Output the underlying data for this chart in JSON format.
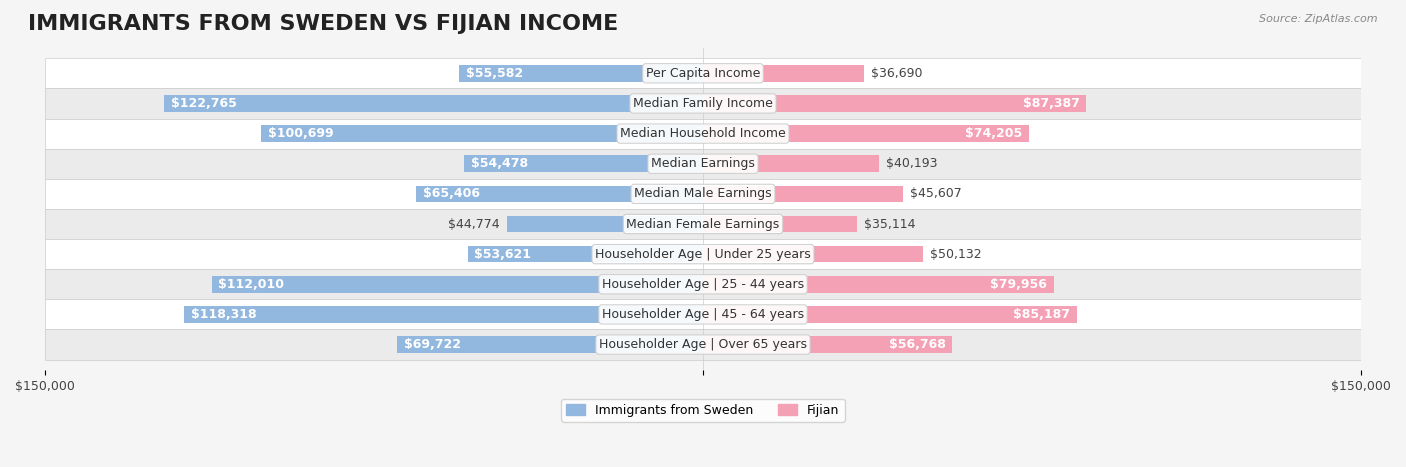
{
  "title": "IMMIGRANTS FROM SWEDEN VS FIJIAN INCOME",
  "source": "Source: ZipAtlas.com",
  "categories": [
    "Per Capita Income",
    "Median Family Income",
    "Median Household Income",
    "Median Earnings",
    "Median Male Earnings",
    "Median Female Earnings",
    "Householder Age | Under 25 years",
    "Householder Age | 25 - 44 years",
    "Householder Age | 45 - 64 years",
    "Householder Age | Over 65 years"
  ],
  "sweden_values": [
    55582,
    122765,
    100699,
    54478,
    65406,
    44774,
    53621,
    112010,
    118318,
    69722
  ],
  "fijian_values": [
    36690,
    87387,
    74205,
    40193,
    45607,
    35114,
    50132,
    79956,
    85187,
    56768
  ],
  "sweden_color": "#93b8df",
  "fijian_color": "#f4a0b5",
  "sweden_dark_color": "#6699cc",
  "fijian_dark_color": "#e07090",
  "label_color_dark": "#ffffff",
  "label_color_light": "#555555",
  "axis_max": 150000,
  "background_color": "#f5f5f5",
  "row_bg_color": "#ffffff",
  "row_alt_bg_color": "#f0f0f0",
  "title_fontsize": 16,
  "label_fontsize": 9,
  "value_fontsize": 9,
  "category_fontsize": 9
}
